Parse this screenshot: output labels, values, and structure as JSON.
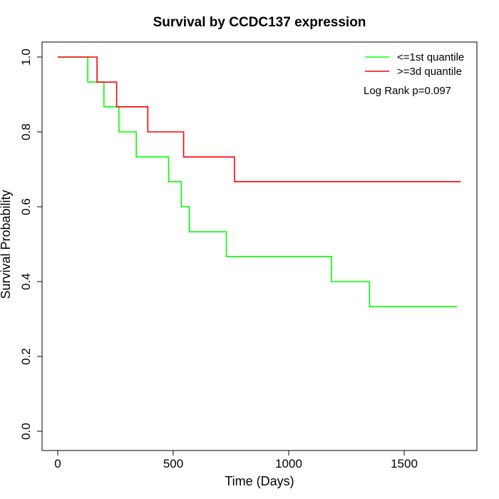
{
  "chart_data": {
    "type": "line",
    "style": "step",
    "title": "Survival by CCDC137 expression",
    "xlabel": "Time (Days)",
    "ylabel": "Survival Probability",
    "xlim": [
      0,
      1800
    ],
    "ylim": [
      0,
      1
    ],
    "xticks": [
      {
        "value": 0,
        "label": "0"
      },
      {
        "value": 500,
        "label": "500"
      },
      {
        "value": 1000,
        "label": "1000"
      },
      {
        "value": 1500,
        "label": "1500"
      }
    ],
    "yticks": [
      {
        "value": 0.0,
        "label": "0.0"
      },
      {
        "value": 0.2,
        "label": "0.2"
      },
      {
        "value": 0.4,
        "label": "0.4"
      },
      {
        "value": 0.6,
        "label": "0.6"
      },
      {
        "value": 0.8,
        "label": "0.8"
      },
      {
        "value": 1.0,
        "label": "1.0"
      }
    ],
    "grid": false,
    "legend_position": "top-right",
    "annotation": "Log Rank p=0.097",
    "series": [
      {
        "name": "<=1st quantile",
        "color": "#00ff00",
        "x": [
          0,
          130,
          200,
          265,
          340,
          480,
          535,
          570,
          730,
          1185,
          1350,
          1730
        ],
        "y": [
          1.0,
          0.933,
          0.867,
          0.8,
          0.733,
          0.667,
          0.6,
          0.533,
          0.467,
          0.4,
          0.333,
          0.333
        ]
      },
      {
        "name": ">=3d quantile",
        "color": "#ff0000",
        "x": [
          0,
          170,
          255,
          390,
          545,
          765,
          1745
        ],
        "y": [
          1.0,
          0.933,
          0.867,
          0.8,
          0.733,
          0.667,
          0.667
        ]
      }
    ]
  }
}
